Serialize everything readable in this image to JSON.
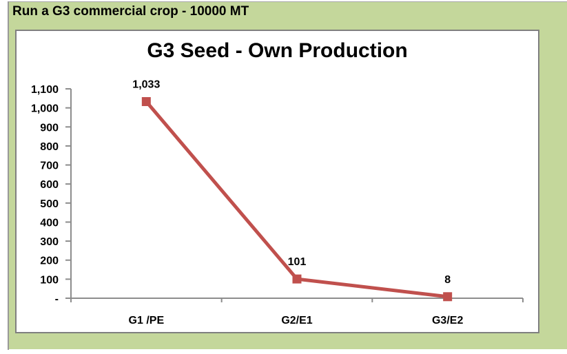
{
  "header": {
    "title": "Run a G3 commercial crop - 10000 MT"
  },
  "chart_data": {
    "type": "line",
    "title": "G3 Seed - Own Production",
    "categories": [
      "G1 /PE",
      "G2/E1",
      "G3/E2"
    ],
    "series": [
      {
        "values": [
          1033,
          101,
          8
        ]
      }
    ],
    "data_labels": [
      "1,033",
      "101",
      "8"
    ],
    "ylim": [
      0,
      1100
    ],
    "ytick_step": 100,
    "ytick_labels": [
      "-",
      "100",
      "200",
      "300",
      "400",
      "500",
      "600",
      "700",
      "800",
      "900",
      "1,000",
      "1,100"
    ],
    "grid": false,
    "legend": false,
    "marker": "square",
    "colors": {
      "series": "#c0504d",
      "axis": "#8c8c8c",
      "chart_border": "#7f7f7f",
      "background": "#c4d79b",
      "text": "#000000"
    }
  }
}
